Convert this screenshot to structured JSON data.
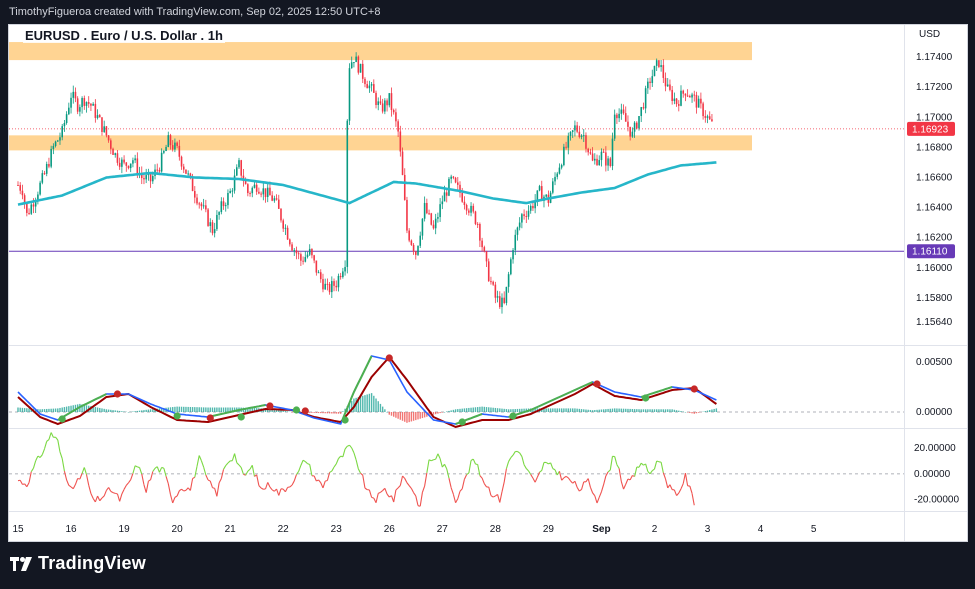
{
  "header": {
    "attribution": "TimothyFigueroa created with TradingView.com, Sep 02, 2025 12:50 UTC+8"
  },
  "footer": {
    "brand": "TradingView"
  },
  "colors": {
    "up": "#089981",
    "down": "#f23645",
    "ema": "#26b6c9",
    "zone": "#ffcc80",
    "hline": "#673ab7",
    "macd": "#2962ff",
    "signal": "#9b0000",
    "cross_green": "#4caf50",
    "cross_red": "#c62828",
    "osc_up": "#7bd843",
    "osc_down": "#ef5350"
  },
  "chart_data": {
    "type": "candlestick",
    "title": "EURUSD . Euro / U.S. Dollar . 1h",
    "currency": "USD",
    "price_axis": {
      "range": [
        1.155,
        1.176
      ],
      "ticks": [
        "1.17400",
        "1.17200",
        "1.17000",
        "1.16800",
        "1.16600",
        "1.16400",
        "1.16200",
        "1.16000",
        "1.15800",
        "1.15640"
      ]
    },
    "last_price": {
      "value": 1.16923,
      "label": "1.16923"
    },
    "horizontal_line": {
      "value": 1.1611,
      "label": "1.16110"
    },
    "supply_zones": [
      {
        "from": 1.1738,
        "to": 1.175
      },
      {
        "from": 1.1678,
        "to": 1.1688
      }
    ],
    "time_axis": {
      "labels": [
        {
          "text": "15",
          "bar": 0
        },
        {
          "text": "16",
          "bar": 24
        },
        {
          "text": "19",
          "bar": 48
        },
        {
          "text": "20",
          "bar": 72
        },
        {
          "text": "21",
          "bar": 96
        },
        {
          "text": "22",
          "bar": 120
        },
        {
          "text": "23",
          "bar": 144
        },
        {
          "text": "26",
          "bar": 168
        },
        {
          "text": "27",
          "bar": 192
        },
        {
          "text": "28",
          "bar": 216
        },
        {
          "text": "29",
          "bar": 240
        },
        {
          "text": "Sep",
          "bar": 264
        },
        {
          "text": "2",
          "bar": 288
        },
        {
          "text": "3",
          "bar": 312
        },
        {
          "text": "4",
          "bar": 336
        },
        {
          "text": "5",
          "bar": 360
        }
      ],
      "total_slots": 400
    },
    "price_anchors": [
      [
        0,
        1.1655
      ],
      [
        2,
        1.1652
      ],
      [
        4,
        1.1635
      ],
      [
        8,
        1.1648
      ],
      [
        12,
        1.1662
      ],
      [
        16,
        1.168
      ],
      [
        20,
        1.169
      ],
      [
        24,
        1.1715
      ],
      [
        27,
        1.1708
      ],
      [
        30,
        1.1712
      ],
      [
        33,
        1.1708
      ],
      [
        36,
        1.17
      ],
      [
        40,
        1.1688
      ],
      [
        44,
        1.1675
      ],
      [
        48,
        1.1668
      ],
      [
        52,
        1.1672
      ],
      [
        56,
        1.166
      ],
      [
        60,
        1.1658
      ],
      [
        64,
        1.1668
      ],
      [
        68,
        1.1684
      ],
      [
        72,
        1.1678
      ],
      [
        76,
        1.1664
      ],
      [
        80,
        1.165
      ],
      [
        84,
        1.1638
      ],
      [
        88,
        1.1625
      ],
      [
        92,
        1.164
      ],
      [
        96,
        1.165
      ],
      [
        100,
        1.1668
      ],
      [
        104,
        1.165
      ],
      [
        108,
        1.1655
      ],
      [
        112,
        1.165
      ],
      [
        116,
        1.1645
      ],
      [
        120,
        1.163
      ],
      [
        124,
        1.1615
      ],
      [
        128,
        1.1605
      ],
      [
        132,
        1.161
      ],
      [
        136,
        1.1595
      ],
      [
        140,
        1.1585
      ],
      [
        144,
        1.159
      ],
      [
        148,
        1.1605
      ],
      [
        149,
        1.17
      ],
      [
        150,
        1.1735
      ],
      [
        152,
        1.174
      ],
      [
        156,
        1.1728
      ],
      [
        160,
        1.1718
      ],
      [
        164,
        1.1705
      ],
      [
        168,
        1.1712
      ],
      [
        172,
        1.169
      ],
      [
        174,
        1.166
      ],
      [
        176,
        1.1625
      ],
      [
        180,
        1.161
      ],
      [
        184,
        1.164
      ],
      [
        188,
        1.1625
      ],
      [
        192,
        1.1645
      ],
      [
        196,
        1.1658
      ],
      [
        200,
        1.165
      ],
      [
        204,
        1.164
      ],
      [
        208,
        1.163
      ],
      [
        212,
        1.16
      ],
      [
        216,
        1.158
      ],
      [
        220,
        1.1575
      ],
      [
        224,
        1.1615
      ],
      [
        228,
        1.1635
      ],
      [
        232,
        1.164
      ],
      [
        236,
        1.165
      ],
      [
        240,
        1.1645
      ],
      [
        244,
        1.1665
      ],
      [
        248,
        1.168
      ],
      [
        252,
        1.1693
      ],
      [
        256,
        1.1688
      ],
      [
        260,
        1.167
      ],
      [
        264,
        1.1675
      ],
      [
        268,
        1.1668
      ],
      [
        270,
        1.1705
      ],
      [
        274,
        1.17
      ],
      [
        278,
        1.1688
      ],
      [
        282,
        1.1705
      ],
      [
        286,
        1.1725
      ],
      [
        290,
        1.1737
      ],
      [
        294,
        1.1718
      ],
      [
        298,
        1.171
      ],
      [
        302,
        1.1718
      ],
      [
        306,
        1.1712
      ],
      [
        310,
        1.1704
      ],
      [
        314,
        1.1695
      ]
    ],
    "ema": {
      "name": "EMA",
      "anchors": [
        [
          0,
          1.1642
        ],
        [
          20,
          1.1648
        ],
        [
          40,
          1.166
        ],
        [
          60,
          1.1663
        ],
        [
          80,
          1.166
        ],
        [
          100,
          1.1659
        ],
        [
          120,
          1.1655
        ],
        [
          135,
          1.1649
        ],
        [
          150,
          1.1643
        ],
        [
          170,
          1.1657
        ],
        [
          180,
          1.1656
        ],
        [
          200,
          1.1651
        ],
        [
          215,
          1.1646
        ],
        [
          230,
          1.1643
        ],
        [
          240,
          1.1646
        ],
        [
          255,
          1.165
        ],
        [
          270,
          1.1653
        ],
        [
          285,
          1.1662
        ],
        [
          300,
          1.1668
        ],
        [
          316,
          1.167
        ]
      ]
    },
    "macd": {
      "axis_ticks": [
        "0.00500",
        "0.00000"
      ],
      "range": [
        -0.0016,
        0.0066
      ],
      "macd_anchors": [
        [
          0,
          0.002
        ],
        [
          10,
          -0.0002
        ],
        [
          18,
          -0.0008
        ],
        [
          28,
          0.0005
        ],
        [
          40,
          0.0018
        ],
        [
          50,
          0.0018
        ],
        [
          60,
          0.0008
        ],
        [
          72,
          -0.0002
        ],
        [
          86,
          -0.0005
        ],
        [
          100,
          0.0002
        ],
        [
          112,
          0.0007
        ],
        [
          124,
          0.0002
        ],
        [
          134,
          -0.0006
        ],
        [
          146,
          -0.0012
        ],
        [
          152,
          0.002
        ],
        [
          160,
          0.0056
        ],
        [
          168,
          0.0052
        ],
        [
          176,
          0.002
        ],
        [
          188,
          -0.0008
        ],
        [
          198,
          -0.0012
        ],
        [
          210,
          -0.0002
        ],
        [
          222,
          -0.0005
        ],
        [
          232,
          0.0002
        ],
        [
          242,
          0.0012
        ],
        [
          252,
          0.0022
        ],
        [
          260,
          0.003
        ],
        [
          270,
          0.002
        ],
        [
          282,
          0.0015
        ],
        [
          296,
          0.0025
        ],
        [
          306,
          0.0022
        ],
        [
          316,
          0.0012
        ]
      ],
      "signal_anchors": [
        [
          0,
          0.0015
        ],
        [
          10,
          -0.0005
        ],
        [
          18,
          -0.0012
        ],
        [
          28,
          -0.0004
        ],
        [
          40,
          0.0015
        ],
        [
          50,
          0.0018
        ],
        [
          60,
          0.0005
        ],
        [
          72,
          -0.0008
        ],
        [
          86,
          -0.001
        ],
        [
          100,
          -0.0003
        ],
        [
          112,
          0.0003
        ],
        [
          124,
          0.0002
        ],
        [
          134,
          -0.0005
        ],
        [
          146,
          -0.001
        ],
        [
          152,
          0.0005
        ],
        [
          160,
          0.0035
        ],
        [
          168,
          0.0055
        ],
        [
          176,
          0.0032
        ],
        [
          188,
          -0.0005
        ],
        [
          198,
          -0.0015
        ],
        [
          210,
          -0.0008
        ],
        [
          222,
          -0.0008
        ],
        [
          232,
          -0.0002
        ],
        [
          242,
          0.0008
        ],
        [
          252,
          0.0018
        ],
        [
          260,
          0.0028
        ],
        [
          270,
          0.0016
        ],
        [
          282,
          0.0012
        ],
        [
          296,
          0.0022
        ],
        [
          306,
          0.0024
        ],
        [
          316,
          0.0008
        ]
      ],
      "crosses": [
        {
          "bar": 20,
          "value": -0.0007,
          "kind": "bull"
        },
        {
          "bar": 45,
          "value": 0.0018,
          "kind": "bear"
        },
        {
          "bar": 72,
          "value": -0.0004,
          "kind": "bull"
        },
        {
          "bar": 87,
          "value": -0.0006,
          "kind": "bear"
        },
        {
          "bar": 101,
          "value": -0.0005,
          "kind": "bull"
        },
        {
          "bar": 114,
          "value": 0.0006,
          "kind": "bear"
        },
        {
          "bar": 126,
          "value": 0.0002,
          "kind": "bull"
        },
        {
          "bar": 130,
          "value": 0.0001,
          "kind": "bear"
        },
        {
          "bar": 148,
          "value": -0.0008,
          "kind": "bull"
        },
        {
          "bar": 168,
          "value": 0.0054,
          "kind": "bear"
        },
        {
          "bar": 201,
          "value": -0.001,
          "kind": "bull"
        },
        {
          "bar": 224,
          "value": -0.0004,
          "kind": "bull"
        },
        {
          "bar": 262,
          "value": 0.0028,
          "kind": "bear"
        },
        {
          "bar": 284,
          "value": 0.0014,
          "kind": "bull"
        },
        {
          "bar": 306,
          "value": 0.0023,
          "kind": "bear"
        }
      ]
    },
    "oscillator": {
      "axis_ticks": [
        "20.00000",
        "0.00000",
        "-20.00000"
      ],
      "range": [
        -29,
        35
      ],
      "anchors": [
        [
          0,
          -5
        ],
        [
          4,
          -8
        ],
        [
          8,
          8
        ],
        [
          12,
          20
        ],
        [
          15,
          32
        ],
        [
          18,
          25
        ],
        [
          22,
          -5
        ],
        [
          26,
          -10
        ],
        [
          30,
          4
        ],
        [
          34,
          -22
        ],
        [
          38,
          -18
        ],
        [
          42,
          -12
        ],
        [
          46,
          -20
        ],
        [
          50,
          -8
        ],
        [
          54,
          8
        ],
        [
          58,
          -12
        ],
        [
          62,
          5
        ],
        [
          66,
          2
        ],
        [
          70,
          -20
        ],
        [
          74,
          -10
        ],
        [
          78,
          -12
        ],
        [
          82,
          12
        ],
        [
          86,
          -6
        ],
        [
          90,
          -15
        ],
        [
          94,
          8
        ],
        [
          98,
          15
        ],
        [
          102,
          -2
        ],
        [
          106,
          5
        ],
        [
          110,
          -12
        ],
        [
          114,
          -8
        ],
        [
          118,
          -15
        ],
        [
          122,
          -10
        ],
        [
          126,
          -2
        ],
        [
          130,
          12
        ],
        [
          134,
          -2
        ],
        [
          138,
          -10
        ],
        [
          142,
          4
        ],
        [
          146,
          12
        ],
        [
          150,
          22
        ],
        [
          154,
          6
        ],
        [
          158,
          -14
        ],
        [
          162,
          -20
        ],
        [
          166,
          -12
        ],
        [
          170,
          -20
        ],
        [
          174,
          -2
        ],
        [
          178,
          -10
        ],
        [
          182,
          -26
        ],
        [
          186,
          10
        ],
        [
          190,
          14
        ],
        [
          194,
          2
        ],
        [
          198,
          -20
        ],
        [
          202,
          -6
        ],
        [
          206,
          12
        ],
        [
          210,
          -3
        ],
        [
          214,
          -14
        ],
        [
          218,
          -20
        ],
        [
          222,
          10
        ],
        [
          226,
          20
        ],
        [
          230,
          4
        ],
        [
          234,
          -8
        ],
        [
          238,
          8
        ],
        [
          242,
          5
        ],
        [
          246,
          -2
        ],
        [
          250,
          -5
        ],
        [
          254,
          -12
        ],
        [
          258,
          -6
        ],
        [
          262,
          -20
        ],
        [
          266,
          -4
        ],
        [
          270,
          16
        ],
        [
          274,
          -10
        ],
        [
          278,
          -4
        ],
        [
          282,
          10
        ],
        [
          286,
          0
        ],
        [
          290,
          12
        ],
        [
          294,
          -8
        ],
        [
          298,
          -18
        ],
        [
          302,
          -2
        ],
        [
          306,
          -22
        ]
      ]
    }
  }
}
